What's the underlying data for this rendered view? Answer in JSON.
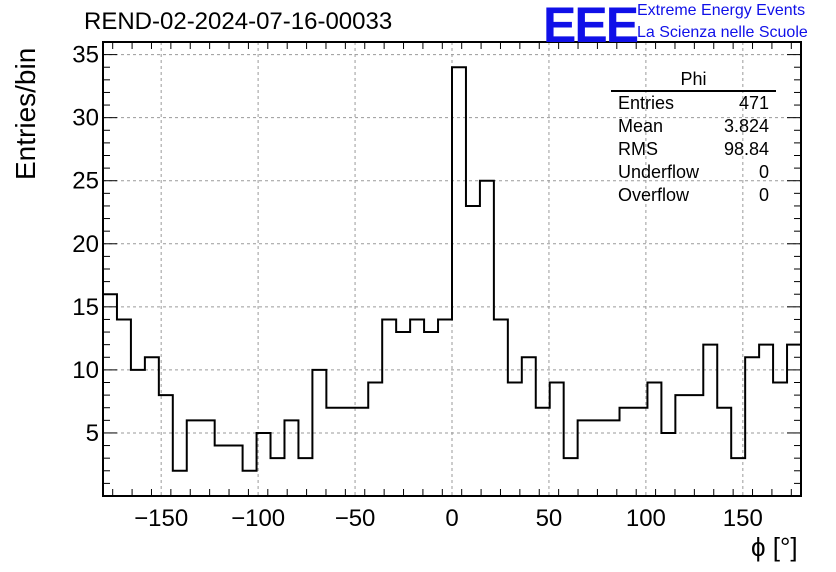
{
  "title": "REND-02-2024-07-16-00033",
  "logo": {
    "mark": "EEE",
    "line1": "Extreme Energy Events",
    "line2": "La Scienza nelle Scuole"
  },
  "stats_box": {
    "name": "Phi",
    "rows": [
      {
        "label": "Entries",
        "value": "471"
      },
      {
        "label": "Mean",
        "value": "3.824"
      },
      {
        "label": "RMS",
        "value": "98.84"
      },
      {
        "label": "Underflow",
        "value": "0"
      },
      {
        "label": "Overflow",
        "value": "0"
      }
    ]
  },
  "chart_data": {
    "type": "histogram",
    "xlabel": "ϕ [°]",
    "ylabel": "Entries/bin",
    "xlim": [
      -180,
      180
    ],
    "ylim": [
      0,
      36
    ],
    "bin_width": 7.2,
    "bin_low_edge": -180,
    "values": [
      16,
      14,
      10,
      11,
      8,
      2,
      6,
      6,
      4,
      4,
      2,
      5,
      3,
      6,
      3,
      10,
      7,
      7,
      7,
      9,
      14,
      13,
      14,
      13,
      14,
      34,
      23,
      25,
      14,
      9,
      11,
      7,
      9,
      3,
      6,
      6,
      6,
      7,
      7,
      9,
      5,
      8,
      8,
      12,
      7,
      3,
      11,
      12,
      9,
      12
    ],
    "xticks": [
      -150,
      -100,
      -50,
      0,
      50,
      100,
      150
    ],
    "xtick_labels": [
      "−150",
      "−100",
      "−50",
      "0",
      "50",
      "100",
      "150"
    ],
    "yticks": [
      5,
      10,
      15,
      20,
      25,
      30,
      35
    ],
    "grid": true,
    "line_color": "#000000",
    "grid_color": "#9a9a9a"
  }
}
